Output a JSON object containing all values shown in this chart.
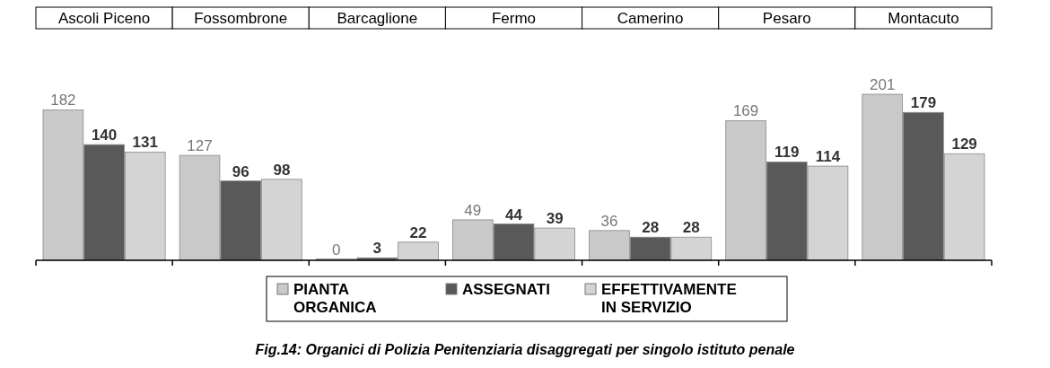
{
  "chart_data": {
    "type": "bar",
    "title": "Fig.14: Organici di Polizia Penitenziaria disaggregati per singolo istituto penale",
    "categories": [
      "Ascoli Piceno",
      "Fossombrone",
      "Barcaglione",
      "Fermo",
      "Camerino",
      "Pesaro",
      "Montacuto"
    ],
    "series": [
      {
        "name": "PIANTA ORGANICA",
        "color": "#c9c9c9",
        "values": [
          182,
          127,
          0,
          49,
          36,
          169,
          201
        ]
      },
      {
        "name": "ASSEGNATI",
        "color": "#595959",
        "values": [
          140,
          96,
          3,
          44,
          28,
          119,
          179
        ]
      },
      {
        "name": "EFFETTIVAMENTE IN SERVIZIO",
        "color": "#d4d4d4",
        "values": [
          131,
          98,
          22,
          39,
          28,
          114,
          129
        ]
      }
    ],
    "data_labels": true,
    "legend": "bottom"
  }
}
